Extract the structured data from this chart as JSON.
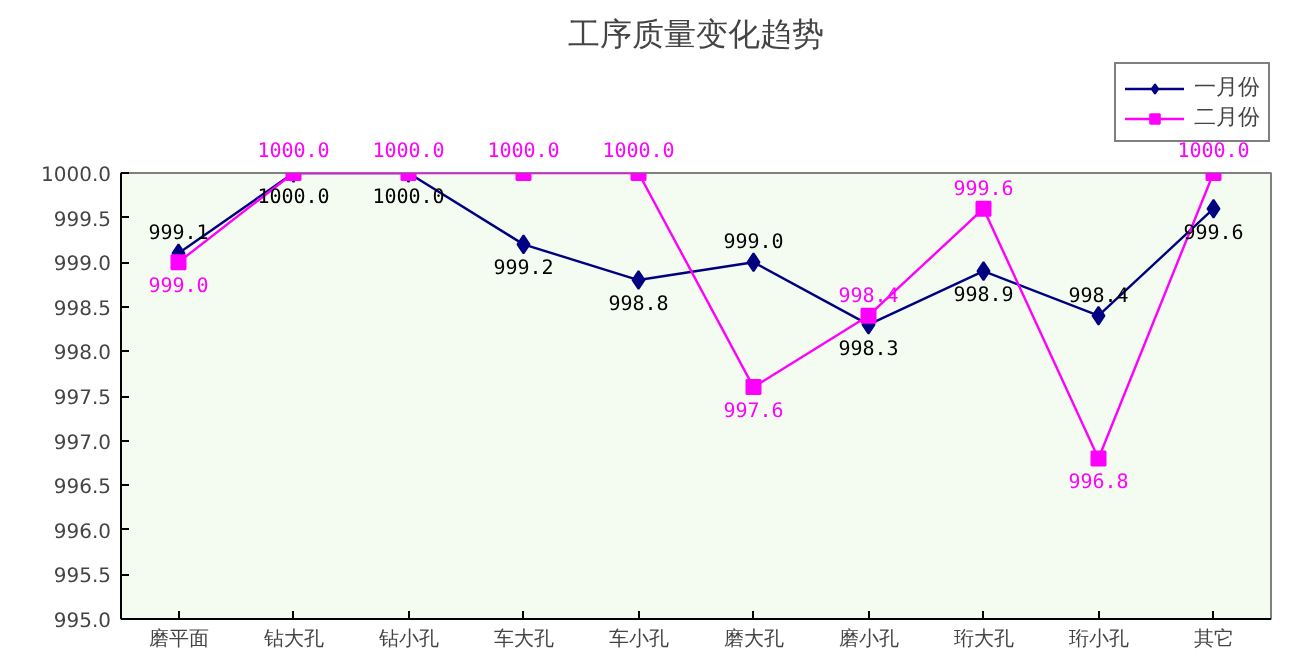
{
  "chart_data": {
    "type": "line",
    "title": "工序质量变化趋势",
    "categories": [
      "磨平面",
      "钻大孔",
      "钻小孔",
      "车大孔",
      "车小孔",
      "磨大孔",
      "磨小孔",
      "珩大孔",
      "珩小孔",
      "其它"
    ],
    "ylim": [
      995.0,
      1000.0
    ],
    "yticks": [
      {
        "value": 995.0,
        "label": "995.0"
      },
      {
        "value": 995.5,
        "label": "995.5"
      },
      {
        "value": 996.0,
        "label": "996.0"
      },
      {
        "value": 996.5,
        "label": "996.5"
      },
      {
        "value": 997.0,
        "label": "997.0"
      },
      {
        "value": 997.5,
        "label": "997.5"
      },
      {
        "value": 998.0,
        "label": "998.0"
      },
      {
        "value": 998.5,
        "label": "998.5"
      },
      {
        "value": 999.0,
        "label": "999.0"
      },
      {
        "value": 999.5,
        "label": "999.5"
      },
      {
        "value": 1000.0,
        "label": "1000.0"
      }
    ],
    "grid": false,
    "legend": "top right",
    "line_style": "solid",
    "series": [
      {
        "name": "一月份",
        "color": "#000080",
        "marker": "diamond",
        "values": [
          999.1,
          1000.0,
          1000.0,
          999.2,
          998.8,
          999.0,
          998.3,
          998.9,
          998.4,
          999.6
        ],
        "value_labels": [
          "999.1",
          "1000.0",
          "1000.0",
          "999.2",
          "998.8",
          "999.0",
          "998.3",
          "998.9",
          "998.4",
          "999.6"
        ]
      },
      {
        "name": "二月份",
        "color": "#ff00ff",
        "marker": "square",
        "values": [
          999.0,
          1000.0,
          1000.0,
          1000.0,
          1000.0,
          997.6,
          998.4,
          999.6,
          996.8,
          1000.0
        ],
        "value_labels": [
          "999.0",
          "1000.0",
          "1000.0",
          "1000.0",
          "1000.0",
          "997.6",
          "998.4",
          "999.6",
          "996.8",
          "1000.0"
        ]
      }
    ]
  }
}
